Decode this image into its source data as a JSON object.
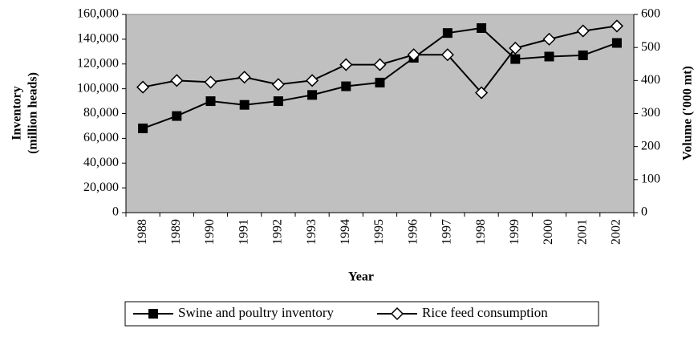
{
  "chart_data": {
    "type": "line",
    "xlabel": "Year",
    "ylabel": [
      "Inventory",
      "(million heads)"
    ],
    "y2label": "Volume ('000 mt)",
    "categories": [
      "1988",
      "1989",
      "1990",
      "1991",
      "1992",
      "1993",
      "1994",
      "1995",
      "1996",
      "1997",
      "1998",
      "1999",
      "2000",
      "2001",
      "2002"
    ],
    "series": [
      {
        "name": "Swine and poultry inventory",
        "color": "#000000",
        "marker": "square",
        "axis": "y",
        "values": [
          68000,
          78000,
          90000,
          87000,
          90000,
          95000,
          102000,
          105000,
          125000,
          145000,
          149000,
          124000,
          126000,
          127000,
          137000
        ]
      },
      {
        "name": "Rice feed consumption",
        "color": "#000000",
        "marker": "diamond",
        "axis": "y2",
        "values": [
          380,
          400,
          395,
          410,
          388,
          400,
          448,
          448,
          478,
          478,
          363,
          498,
          525,
          550,
          565
        ]
      }
    ],
    "ylim": [
      0,
      160000
    ],
    "yticks": [
      0,
      {
        "value": 20000,
        "label": "20,000"
      },
      {
        "value": 40000,
        "label": "40,000"
      },
      {
        "value": 60000,
        "label": "60,000"
      },
      {
        "value": 80000,
        "label": "80,000"
      },
      {
        "value": 100000,
        "label": "100,000"
      },
      {
        "value": 120000,
        "label": "120,000"
      },
      {
        "value": 140000,
        "label": "140,000"
      },
      {
        "value": 160000,
        "label": "160,000"
      }
    ],
    "y2lim": [
      0,
      600
    ],
    "y2ticks": [
      0,
      100,
      200,
      300,
      400,
      500,
      600
    ],
    "plot_background": "#c0c0c0",
    "legend": "bottom"
  }
}
